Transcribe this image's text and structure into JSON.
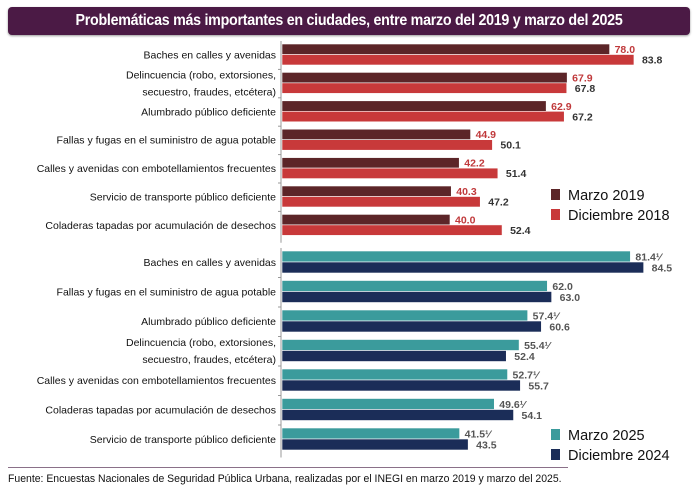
{
  "title": "Problemáticas más importantes en ciudades, entre marzo del 2019 y marzo del 2025",
  "source": "Fuente: Encuestas Nacionales de Seguridad Pública Urbana, realizadas por el INEGI en marzo 2019 y marzo del 2025.",
  "chart_data": [
    {
      "type": "bar",
      "orientation": "horizontal",
      "categories": [
        [
          "Baches en calles y avenidas"
        ],
        [
          "Delincuencia (robo, extorsiones,",
          "secuestro, fraudes, etcétera)"
        ],
        [
          "Alumbrado público deficiente"
        ],
        [
          "Fallas y fugas en el suministro de agua potable"
        ],
        [
          "Calles y avenidas con embotellamientos frecuentes"
        ],
        [
          "Servicio de transporte público deficiente"
        ],
        [
          "Coladeras tapadas por acumulación de desechos"
        ]
      ],
      "series": [
        {
          "name": "Marzo 2019",
          "color": "#5c2528",
          "label_color": "#c0393b",
          "values": [
            78.0,
            67.9,
            62.9,
            44.9,
            42.2,
            40.3,
            40.0
          ],
          "labels": [
            "78.0",
            "67.9",
            "62.9",
            "44.9",
            "42.2",
            "40.3",
            "40.0"
          ]
        },
        {
          "name": "Diciembre 2018",
          "color": "#c8393a",
          "label_color": "#333333",
          "values": [
            83.8,
            67.8,
            67.2,
            50.1,
            51.4,
            47.2,
            52.4
          ],
          "labels": [
            "83.8",
            "67.8",
            "67.2",
            "50.1",
            "51.4",
            "47.2",
            "52.4"
          ]
        }
      ],
      "legend": "bottom-right",
      "grid": false
    },
    {
      "type": "bar",
      "orientation": "horizontal",
      "categories": [
        [
          "Baches en calles y avenidas"
        ],
        [
          "Fallas y fugas en el suministro de agua potable"
        ],
        [
          "Alumbrado público deficiente"
        ],
        [
          "Delincuencia (robo, extorsiones,",
          "secuestro, fraudes, etcétera)"
        ],
        [
          "Calles y avenidas con embotellamientos frecuentes"
        ],
        [
          "Coladeras tapadas por acumulación de desechos"
        ],
        [
          "Servicio de transporte público deficiente"
        ]
      ],
      "series": [
        {
          "name": "Marzo 2025",
          "color": "#3b9b9c",
          "label_color": "#555555",
          "values": [
            81.4,
            62.0,
            57.4,
            55.4,
            52.7,
            49.6,
            41.5
          ],
          "labels": [
            "81.4¹⁄",
            "62.0",
            "57.4¹⁄",
            "55.4¹⁄",
            "52.7¹⁄",
            "49.6¹⁄",
            "41.5¹⁄"
          ]
        },
        {
          "name": "Diciembre 2024",
          "color": "#1b2d58",
          "label_color": "#555555",
          "values": [
            84.5,
            63.0,
            60.6,
            52.4,
            55.7,
            54.1,
            43.5
          ],
          "labels": [
            "84.5",
            "63.0",
            "60.6",
            "52.4",
            "55.7",
            "54.1",
            "43.5"
          ]
        }
      ],
      "legend": "bottom-right",
      "grid": false
    }
  ]
}
